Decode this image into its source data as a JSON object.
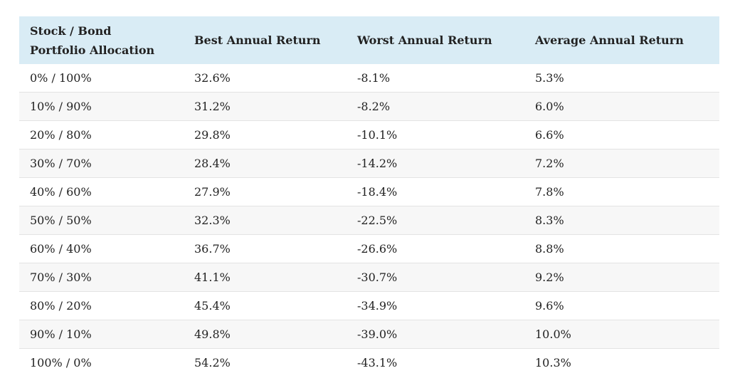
{
  "table": {
    "headers": [
      "Stock / Bond Portfolio Allocation",
      "Best Annual Return",
      "Worst Annual Return",
      "Average Annual Return"
    ],
    "rows": [
      [
        "0% / 100%",
        "32.6%",
        "-8.1%",
        "5.3%"
      ],
      [
        "10% / 90%",
        "31.2%",
        "-8.2%",
        "6.0%"
      ],
      [
        "20% / 80%",
        "29.8%",
        "-10.1%",
        "6.6%"
      ],
      [
        "30% / 70%",
        "28.4%",
        "-14.2%",
        "7.2%"
      ],
      [
        "40% / 60%",
        "27.9%",
        "-18.4%",
        "7.8%"
      ],
      [
        "50% / 50%",
        "32.3%",
        "-22.5%",
        "8.3%"
      ],
      [
        "60% / 40%",
        "36.7%",
        "-26.6%",
        "8.8%"
      ],
      [
        "70% / 30%",
        "41.1%",
        "-30.7%",
        "9.2%"
      ],
      [
        "80% / 20%",
        "45.4%",
        "-34.9%",
        "9.6%"
      ],
      [
        "90% / 10%",
        "49.8%",
        "-39.0%",
        "10.0%"
      ],
      [
        "100% / 0%",
        "54.2%",
        "-43.1%",
        "10.3%"
      ]
    ]
  },
  "colors": {
    "header_background": "#d9ecf5",
    "stripe_background": "#f7f7f7",
    "row_divider": "#e3e3e3",
    "text": "#222222"
  }
}
